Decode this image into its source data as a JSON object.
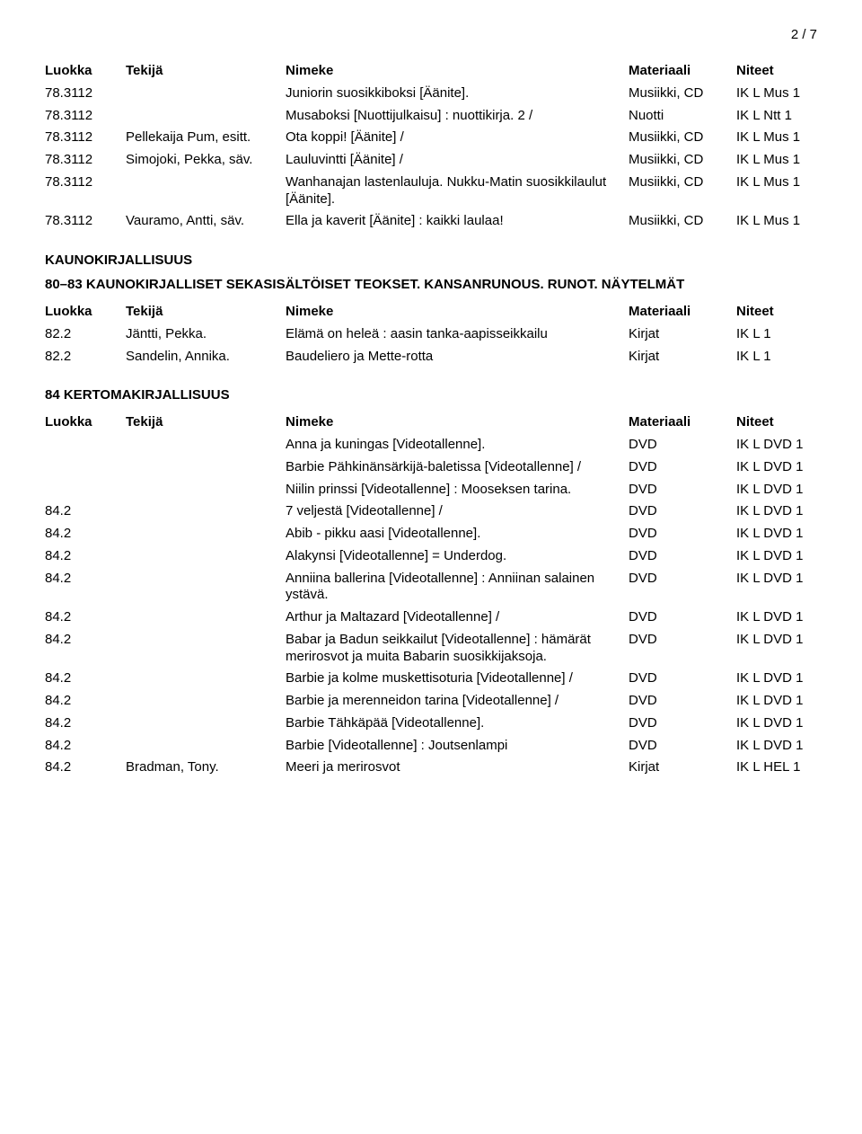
{
  "page_number": "2 / 7",
  "headers": {
    "c1": "Luokka",
    "c2": "Tekijä",
    "c3": "Nimeke",
    "c4": "Materiaali",
    "c5": "Niteet"
  },
  "top_rows": [
    {
      "c1": "78.3112",
      "c2": "",
      "c3": "Juniorin suosikkiboksi [Äänite].",
      "c4": "Musiikki, CD",
      "c5": "IK  L Mus 1"
    },
    {
      "c1": "78.3112",
      "c2": "",
      "c3": "Musaboksi [Nuottijulkaisu] : nuottikirja. 2 /",
      "c4": "Nuotti",
      "c5": "IK  L Ntt 1"
    },
    {
      "c1": "78.3112",
      "c2": "Pellekaija Pum, esitt.",
      "c3": "Ota koppi! [Äänite] /",
      "c4": "Musiikki, CD",
      "c5": "IK  L Mus 1"
    },
    {
      "c1": "78.3112",
      "c2": "Simojoki, Pekka, säv.",
      "c3": "Lauluvintti [Äänite] /",
      "c4": "Musiikki, CD",
      "c5": "IK  L Mus 1"
    },
    {
      "c1": "78.3112",
      "c2": "",
      "c3": "Wanhanajan lastenlauluja. Nukku-Matin suosikkilaulut [Äänite].",
      "c4": "Musiikki, CD",
      "c5": "IK  L Mus 1"
    },
    {
      "c1": "78.3112",
      "c2": "Vauramo, Antti, säv.",
      "c3": "Ella ja kaverit [Äänite] : kaikki laulaa!",
      "c4": "Musiikki, CD",
      "c5": "IK  L Mus 1"
    }
  ],
  "kauno_title": "KAUNOKIRJALLISUUS",
  "section80_title": "80–83 KAUNOKIRJALLISET SEKASISÄLTÖISET TEOKSET. KANSANRUNOUS. RUNOT. NÄYTELMÄT",
  "section80_rows": [
    {
      "c1": "82.2",
      "c2": "Jäntti, Pekka.",
      "c3": "Elämä on heleä : aasin tanka-aapisseikkailu",
      "c4": "Kirjat",
      "c5": "IK  L 1"
    },
    {
      "c1": "82.2",
      "c2": "Sandelin, Annika.",
      "c3": "Baudeliero ja Mette-rotta",
      "c4": "Kirjat",
      "c5": "IK  L 1"
    }
  ],
  "section84_title": "84 KERTOMAKIRJALLISUUS",
  "section84_rows": [
    {
      "c1": "",
      "c2": "",
      "c3": "Anna ja kuningas [Videotallenne].",
      "c4": "DVD",
      "c5": "IK  L DVD 1"
    },
    {
      "c1": "",
      "c2": "",
      "c3": "Barbie Pähkinänsärkijä-baletissa [Videotallenne] /",
      "c4": "DVD",
      "c5": "IK  L DVD 1"
    },
    {
      "c1": "",
      "c2": "",
      "c3": "Niilin prinssi [Videotallenne] : Mooseksen tarina.",
      "c4": "DVD",
      "c5": "IK  L DVD 1"
    },
    {
      "c1": "84.2",
      "c2": "",
      "c3": "7 veljestä [Videotallenne] /",
      "c4": "DVD",
      "c5": "IK  L DVD 1"
    },
    {
      "c1": "84.2",
      "c2": "",
      "c3": "Abib - pikku aasi [Videotallenne].",
      "c4": "DVD",
      "c5": "IK  L DVD 1"
    },
    {
      "c1": "84.2",
      "c2": "",
      "c3": "Alakynsi [Videotallenne] = Underdog.",
      "c4": "DVD",
      "c5": "IK  L DVD 1"
    },
    {
      "c1": "84.2",
      "c2": "",
      "c3": "Anniina ballerina [Videotallenne] : Anniinan salainen ystävä.",
      "c4": "DVD",
      "c5": "IK  L DVD 1"
    },
    {
      "c1": "84.2",
      "c2": "",
      "c3": "Arthur ja Maltazard [Videotallenne] /",
      "c4": "DVD",
      "c5": "IK  L DVD 1"
    },
    {
      "c1": "84.2",
      "c2": "",
      "c3": "Babar ja Badun seikkailut [Videotallenne] : hämärät merirosvot ja muita Babarin suosikkijaksoja.",
      "c4": "DVD",
      "c5": "IK  L DVD 1"
    },
    {
      "c1": "84.2",
      "c2": "",
      "c3": "Barbie ja kolme muskettisoturia [Videotallenne] /",
      "c4": "DVD",
      "c5": "IK  L DVD 1"
    },
    {
      "c1": "84.2",
      "c2": "",
      "c3": "Barbie ja merenneidon tarina [Videotallenne] /",
      "c4": "DVD",
      "c5": "IK  L DVD 1"
    },
    {
      "c1": "84.2",
      "c2": "",
      "c3": "Barbie Tähkäpää [Videotallenne].",
      "c4": "DVD",
      "c5": "IK  L DVD 1"
    },
    {
      "c1": "84.2",
      "c2": "",
      "c3": "Barbie [Videotallenne] : Joutsenlampi",
      "c4": "DVD",
      "c5": "IK  L DVD 1"
    },
    {
      "c1": "84.2",
      "c2": "Bradman, Tony.",
      "c3": "Meeri ja merirosvot",
      "c4": "Kirjat",
      "c5": "IK  L HEL 1"
    }
  ]
}
